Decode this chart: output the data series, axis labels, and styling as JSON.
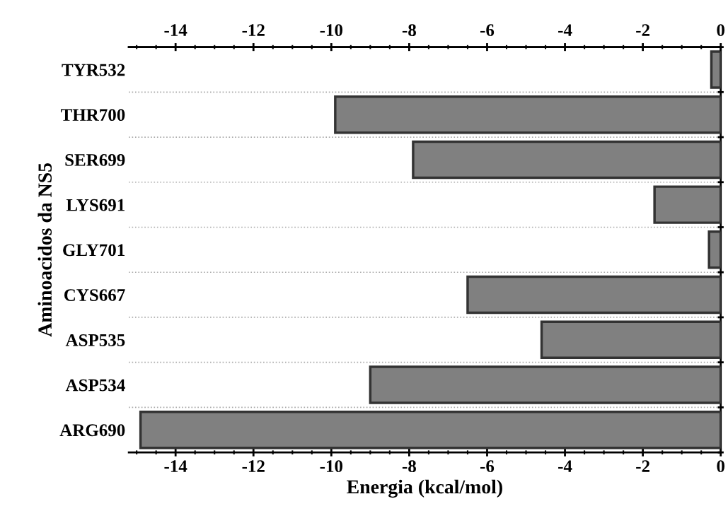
{
  "chart_data": {
    "type": "bar",
    "orientation": "horizontal",
    "xlabel": "Energia (kcal/mol)",
    "ylabel": "Aminoacidos da NS5",
    "categories": [
      "TYR532",
      "THR700",
      "SER699",
      "LYS691",
      "GLY701",
      "CYS667",
      "ASP535",
      "ASP534",
      "ARG690"
    ],
    "values": [
      -0.24,
      -9.9,
      -7.9,
      -1.7,
      -0.3,
      -6.5,
      -4.6,
      -9.0,
      -14.9
    ],
    "color": "#808080",
    "xlim": [
      -15.2,
      0
    ],
    "xticks": [
      -14,
      -12,
      -10,
      -8,
      -6,
      -4,
      -2,
      0
    ],
    "x2lim": [
      -15.2,
      0
    ],
    "x2ticks": [
      -14,
      -12,
      -10,
      -8,
      -6,
      -4,
      -2,
      0
    ],
    "grid": "y"
  }
}
